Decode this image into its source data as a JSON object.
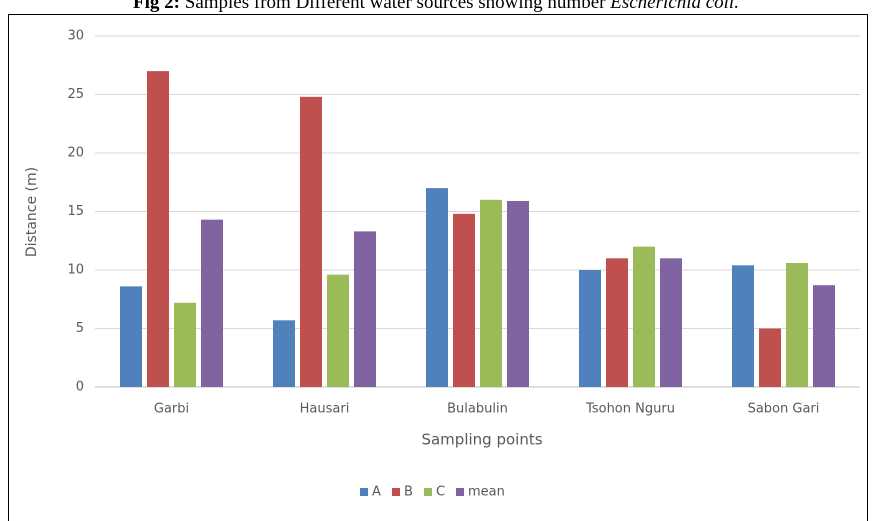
{
  "chart_data": {
    "type": "bar",
    "title_label": "Fig 2:",
    "title": "Samples from Different water sources showing number",
    "title_organism": "Escherichia coli.",
    "y_label": "Distance (m)",
    "x_label": "Sampling points",
    "categories": [
      "Garbi",
      "Hausari",
      "Bulabulin",
      "Tsohon Nguru",
      "Sabon Gari"
    ],
    "series": [
      {
        "name": "A",
        "color": "#4f81bd",
        "values": [
          8.6,
          5.7,
          17,
          10,
          10.4
        ]
      },
      {
        "name": "B",
        "color": "#c0504d",
        "values": [
          27,
          24.8,
          14.8,
          11,
          5
        ]
      },
      {
        "name": "C",
        "color": "#9bbb59",
        "values": [
          7.2,
          9.6,
          16,
          12,
          10.6
        ]
      },
      {
        "name": "mean",
        "color": "#8064a2",
        "values": [
          14.3,
          13.3,
          15.9,
          11,
          8.7
        ]
      }
    ],
    "ylim": [
      0,
      30
    ],
    "yticks": [
      0,
      5,
      10,
      15,
      20,
      25,
      30
    ],
    "grid": true,
    "legend": "bottom"
  }
}
